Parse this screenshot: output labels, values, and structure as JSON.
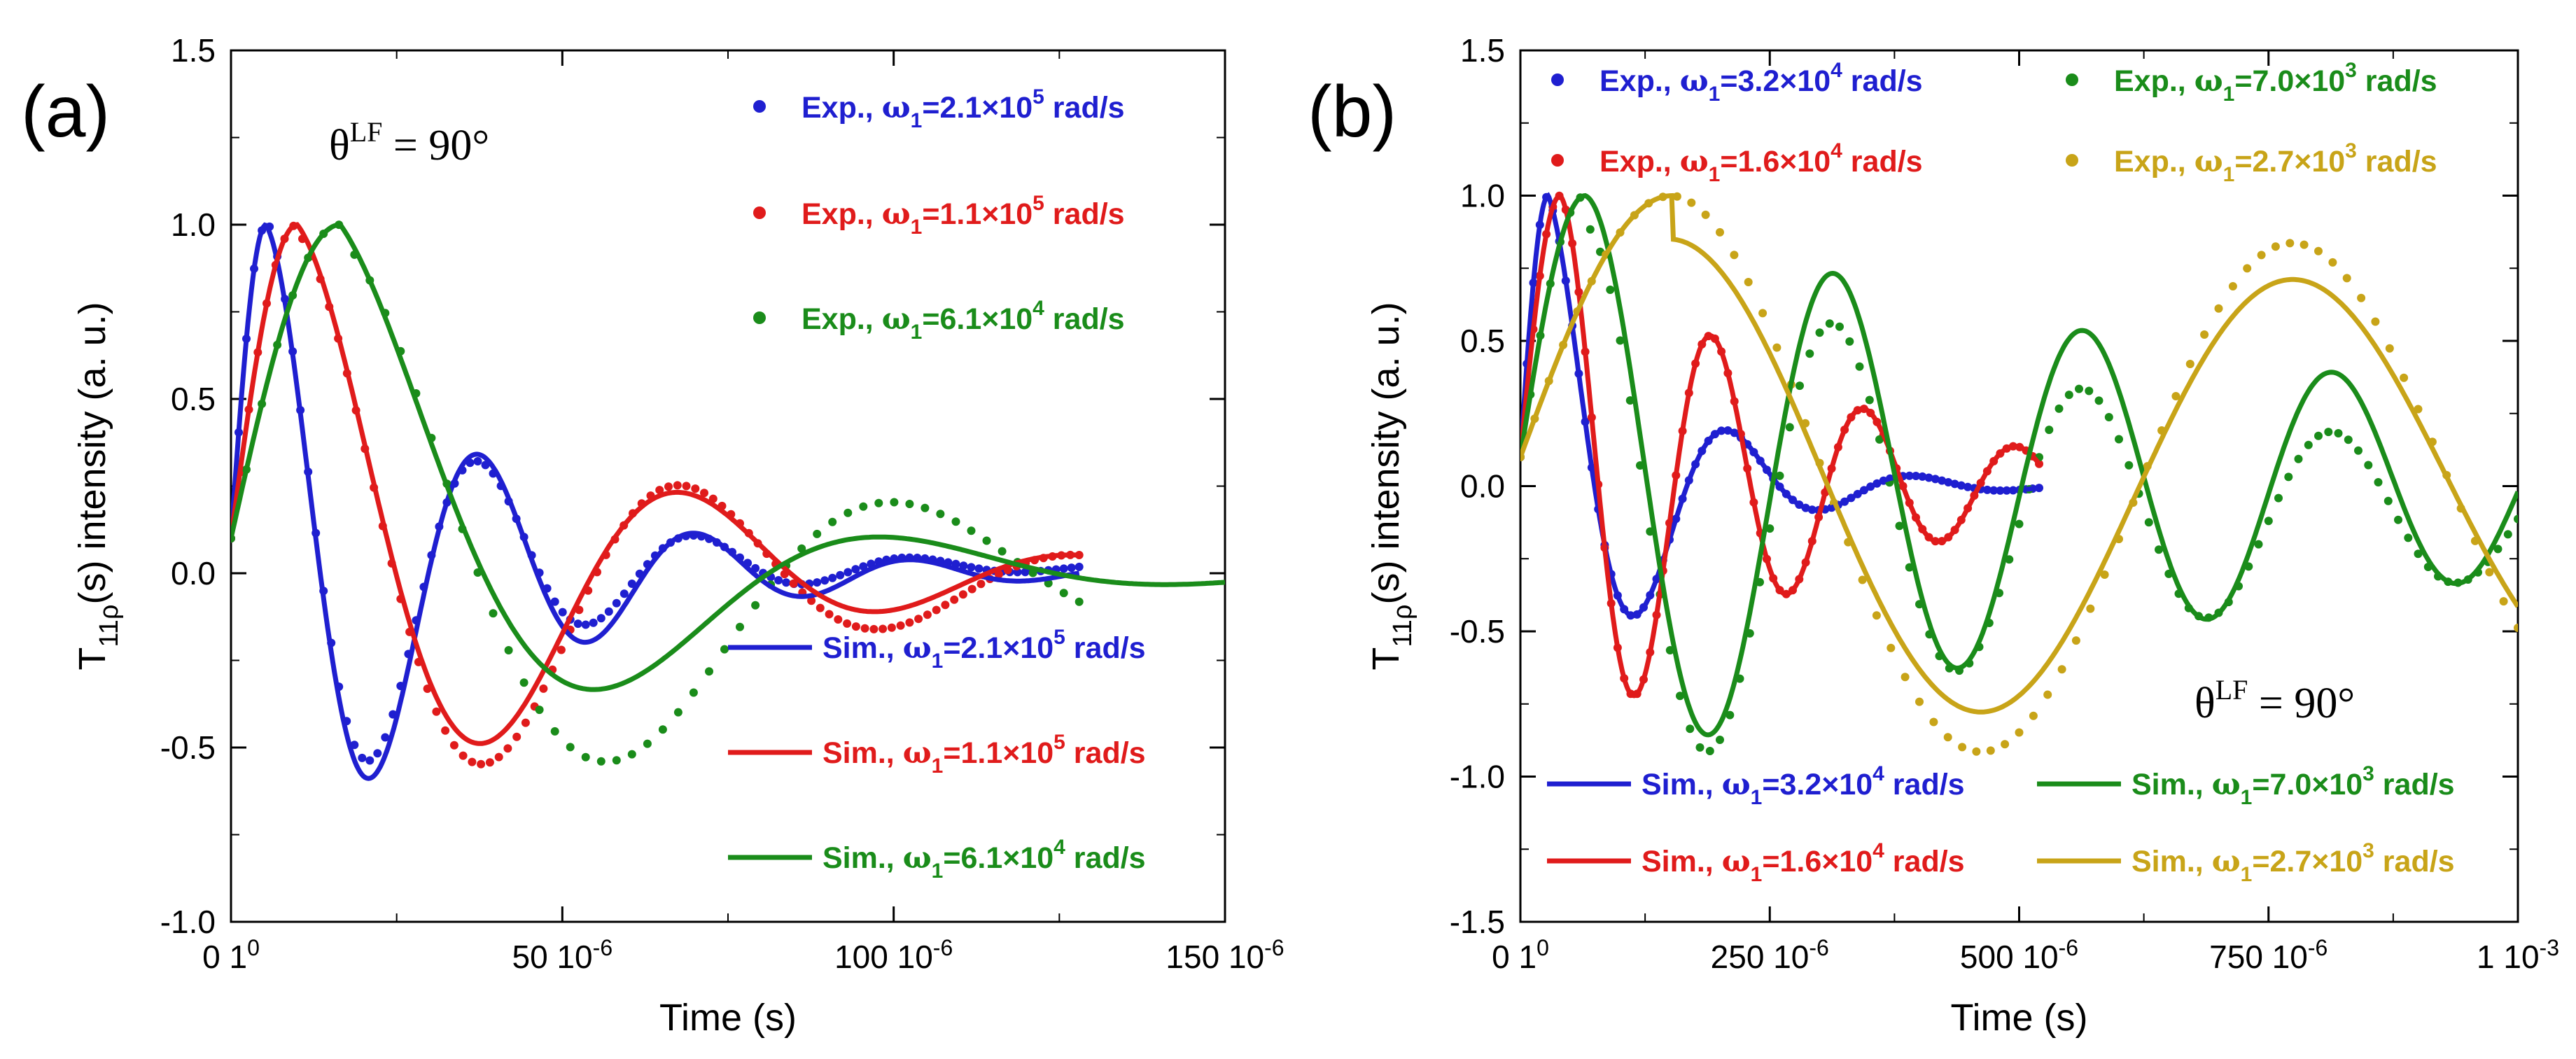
{
  "chart_data": [
    {
      "panel_label": "(a)",
      "type": "scatter+line",
      "annotation": {
        "theta": "θ",
        "sup": "LF",
        "rest": " = 90°"
      },
      "xlabel": "Time  (s)",
      "ylabel": {
        "prefix": "T",
        "sub": "11ρ",
        "suffix": "(s) intensity  (a. u.)"
      },
      "xlim": [
        0,
        150
      ],
      "ylim": [
        -1.0,
        1.5
      ],
      "xticks": [
        {
          "v": 0,
          "label": "0",
          "exp": "1",
          "sup": "0"
        },
        {
          "v": 50,
          "label": "50",
          "exp": "10",
          "sup": "-6"
        },
        {
          "v": 100,
          "label": "100",
          "exp": "10",
          "sup": "-6"
        },
        {
          "v": 150,
          "label": "150",
          "exp": "10",
          "sup": "-6"
        }
      ],
      "yticks": [
        "-1.0",
        "-0.5",
        "0.0",
        "0.5",
        "1.0",
        "1.5"
      ],
      "series": [
        {
          "kind": "exp",
          "color": "#1f1fd0",
          "label": "Exp., ",
          "omega": "ω",
          "sub": "1",
          "val": "=2.1×10",
          "sup": "5",
          "unit": " rad/s",
          "model": {
            "f": 30.6,
            "tau": 27,
            "amp": 1.0,
            "off": 0.018,
            "shift": 5.3,
            "tStart": 0,
            "tEnd": 128,
            "n": 110
          }
        },
        {
          "kind": "exp",
          "color": "#e01b1b",
          "label": "Exp., ",
          "omega": "ω",
          "sub": "1",
          "val": "=1.1×10",
          "sup": "5",
          "unit": " rad/s",
          "model": {
            "f": 16.8,
            "tau": 45,
            "amp": 1.0,
            "off": -0.02,
            "shift": 10.0,
            "tStart": 0,
            "tEnd": 128,
            "n": 95
          }
        },
        {
          "kind": "exp",
          "color": "#1a8c1a",
          "label": "Exp., ",
          "omega": "ω",
          "sub": "1",
          "val": "=6.1×10",
          "sup": "4",
          "unit": " rad/s",
          "model": {
            "f": 11.6,
            "tau": 60,
            "amp": 1.0,
            "off": -0.04,
            "shift": 16.5,
            "tStart": 0,
            "tEnd": 128,
            "n": 55
          }
        },
        {
          "kind": "sim",
          "color": "#1f1fd0",
          "label": "Sim., ",
          "omega": "ω",
          "sub": "1",
          "val": "=2.1×10",
          "sup": "5",
          "unit": " rad/s",
          "model": {
            "f": 30.6,
            "tau": 30,
            "amp": 1.0,
            "off": 0.0,
            "shift": 5.3,
            "tStart": 0,
            "tEnd": 128,
            "n": 500
          }
        },
        {
          "kind": "sim",
          "color": "#e01b1b",
          "label": "Sim., ",
          "omega": "ω",
          "sub": "1",
          "val": "=1.1×10",
          "sup": "5",
          "unit": " rad/s",
          "model": {
            "f": 16.8,
            "tau": 40,
            "amp": 1.0,
            "off": 0.0,
            "shift": 10.0,
            "tStart": 0,
            "tEnd": 128,
            "n": 500
          }
        },
        {
          "kind": "sim",
          "color": "#1a8c1a",
          "label": "Sim., ",
          "omega": "ω",
          "sub": "1",
          "val": "=6.1×10",
          "sup": "4",
          "unit": " rad/s",
          "model": {
            "f": 11.6,
            "tau": 37,
            "amp": 1.0,
            "off": 0.0,
            "shift": 16.5,
            "tStart": 0,
            "tEnd": 150,
            "n": 500
          }
        }
      ]
    },
    {
      "panel_label": "(b)",
      "type": "scatter+line",
      "annotation": {
        "theta": "θ",
        "sup": "LF",
        "rest": " = 90°"
      },
      "xlabel": "Time  (s)",
      "ylabel": {
        "prefix": "T",
        "sub": "11ρ",
        "suffix": "(s) intensity  (a. u.)"
      },
      "xlim": [
        0,
        1000
      ],
      "ylim": [
        -1.5,
        1.5
      ],
      "xticks": [
        {
          "v": 0,
          "label": "0",
          "exp": "1",
          "sup": "0"
        },
        {
          "v": 250,
          "label": "250",
          "exp": "10",
          "sup": "-6"
        },
        {
          "v": 500,
          "label": "500",
          "exp": "10",
          "sup": "-6"
        },
        {
          "v": 750,
          "label": "750",
          "exp": "10",
          "sup": "-6"
        },
        {
          "v": 1000,
          "label": "1",
          "exp": "10",
          "sup": "-3"
        }
      ],
      "yticks": [
        "-1.5",
        "-1.0",
        "-0.5",
        "0.0",
        "0.5",
        "1.0",
        "1.5"
      ],
      "series": [
        {
          "kind": "exp",
          "color": "#1f1fd0",
          "label": "Exp., ",
          "omega": "ω",
          "sub": "1",
          "val": "=3.2×10",
          "sup": "4",
          "unit": " rad/s",
          "model": {
            "f": 5.4,
            "tau": 110,
            "amp": 1.0,
            "off": 0.0,
            "shift": 28,
            "tStart": 0,
            "tEnd": 520,
            "n": 80
          }
        },
        {
          "kind": "exp",
          "color": "#e01b1b",
          "label": "Exp., ",
          "omega": "ω",
          "sub": "1",
          "val": "=1.6×10",
          "sup": "4",
          "unit": " rad/s",
          "model": {
            "f": 6.55,
            "tau": 230,
            "amp": 1.0,
            "off": 0.0,
            "shift": 40,
            "tStart": 0,
            "tEnd": 520,
            "n": 80
          }
        },
        {
          "kind": "exp",
          "color": "#1a8c1a",
          "label": "Exp., ",
          "omega": "ω",
          "sub": "1",
          "val": "=7.0×10",
          "sup": "3",
          "unit": " rad/s",
          "model": {
            "f": 4.0,
            "tau": 600,
            "amp": 1.0,
            "off": -0.1,
            "shift": 65,
            "tStart": 0,
            "tEnd": 1000,
            "n": 100
          }
        },
        {
          "kind": "exp",
          "color": "#c8a418",
          "label": "Exp., ",
          "omega": "ω",
          "sub": "1",
          "val": "=2.7×10",
          "sup": "3",
          "unit": " rad/s",
          "model": {
            "f": 1.6,
            "tau": 3500,
            "amp": 1.0,
            "off": 0.0,
            "shift": 152,
            "tStart": 0,
            "tEnd": 1000,
            "n": 70
          }
        },
        {
          "kind": "sim",
          "color": "#1f1fd0",
          "label": "Sim., ",
          "omega": "ω",
          "sub": "1",
          "val": "=3.2×10",
          "sup": "4",
          "unit": " rad/s",
          "model": {
            "f": 5.4,
            "tau": 110,
            "amp": 1.0,
            "off": 0.0,
            "shift": 28,
            "tStart": 0,
            "tEnd": 520,
            "n": 600
          }
        },
        {
          "kind": "sim",
          "color": "#e01b1b",
          "label": "Sim., ",
          "omega": "ω",
          "sub": "1",
          "val": "=1.6×10",
          "sup": "4",
          "unit": " rad/s",
          "model": {
            "f": 6.55,
            "tau": 230,
            "amp": 1.0,
            "off": 0.0,
            "shift": 40,
            "tStart": 0,
            "tEnd": 520,
            "n": 600
          }
        },
        {
          "kind": "sim",
          "color": "#1a8c1a",
          "label": "Sim., ",
          "omega": "ω",
          "sub": "1",
          "val": "=7.0×10",
          "sup": "3",
          "unit": " rad/s",
          "model": {
            "f": 4.0,
            "tau": 800,
            "amp": 1.0,
            "off": 0.0,
            "shift": 65,
            "tStart": 0,
            "tEnd": 1000,
            "n": 600
          }
        },
        {
          "kind": "sim",
          "color": "#c8a418",
          "label": "Sim., ",
          "omega": "ω",
          "sub": "1",
          "val": "=2.7×10",
          "sup": "3",
          "unit": " rad/s",
          "model": {
            "f": 1.6,
            "tau": 3500,
            "amp": 0.85,
            "off": 0.0,
            "shift": 152,
            "tStart": 0,
            "tEnd": 1000,
            "n": 600
          }
        }
      ]
    }
  ]
}
